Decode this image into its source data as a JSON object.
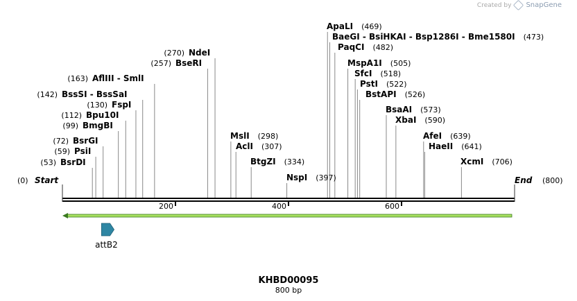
{
  "credit": {
    "prefix": "Created by",
    "brand": "SnapGene",
    "icon": "snapgene-logo-icon"
  },
  "map": {
    "title": "KHBD00095",
    "length_label": "800 bp",
    "length_bp": 800,
    "start_label": "Start",
    "start_pos": "(0)",
    "end_label": "End",
    "end_pos": "(800)"
  },
  "ruler": {
    "ticks": [
      200,
      400,
      600
    ]
  },
  "sites": [
    {
      "label": "BsrDI",
      "pos": 53,
      "pos_label": "(53)",
      "bp": 53
    },
    {
      "label": "PsiI",
      "pos": 59,
      "pos_label": "(59)",
      "bp": 59
    },
    {
      "label": "BsrGI",
      "pos": 72,
      "pos_label": "(72)",
      "bp": 72
    },
    {
      "label": "BmgBI",
      "pos": 99,
      "pos_label": "(99)",
      "bp": 99
    },
    {
      "label": "Bpu10I",
      "pos": 112,
      "pos_label": "(112)",
      "bp": 112
    },
    {
      "label": "FspI",
      "pos": 130,
      "pos_label": "(130)",
      "bp": 130
    },
    {
      "label": "BssSI - BssSaI",
      "pos": 142,
      "pos_label": "(142)",
      "bp": 142
    },
    {
      "label": "AflIII - SmlI",
      "pos": 163,
      "pos_label": "(163)",
      "bp": 163
    },
    {
      "label": "BseRI",
      "pos": 257,
      "pos_label": "(257)",
      "bp": 257
    },
    {
      "label": "NdeI",
      "pos": 270,
      "pos_label": "(270)",
      "bp": 270
    },
    {
      "label": "MslI",
      "pos": 298,
      "pos_label": "(298)",
      "bp": 298
    },
    {
      "label": "AclI",
      "pos": 307,
      "pos_label": "(307)",
      "bp": 307
    },
    {
      "label": "BtgZI",
      "pos": 334,
      "pos_label": "(334)",
      "bp": 334
    },
    {
      "label": "NspI",
      "pos": 397,
      "pos_label": "(397)",
      "bp": 397
    },
    {
      "label": "ApaLI",
      "pos": 469,
      "pos_label": "(469)",
      "bp": 469
    },
    {
      "label": "BaeGI - BsiHKAI - Bsp1286I - Bme1580I",
      "pos": 473,
      "pos_label": "(473)",
      "bp": 473
    },
    {
      "label": "PaqCI",
      "pos": 482,
      "pos_label": "(482)",
      "bp": 482
    },
    {
      "label": "MspA1I",
      "pos": 505,
      "pos_label": "(505)",
      "bp": 505
    },
    {
      "label": "SfcI",
      "pos": 518,
      "pos_label": "(518)",
      "bp": 518
    },
    {
      "label": "PstI",
      "pos": 522,
      "pos_label": "(522)",
      "bp": 522
    },
    {
      "label": "BstAPI",
      "pos": 526,
      "pos_label": "(526)",
      "bp": 526
    },
    {
      "label": "BsaAI",
      "pos": 573,
      "pos_label": "(573)",
      "bp": 573
    },
    {
      "label": "XbaI",
      "pos": 590,
      "pos_label": "(590)",
      "bp": 590
    },
    {
      "label": "AfeI",
      "pos": 639,
      "pos_label": "(639)",
      "bp": 639
    },
    {
      "label": "HaeII",
      "pos": 641,
      "pos_label": "(641)",
      "bp": 641
    },
    {
      "label": "XcmI",
      "pos": 706,
      "pos_label": "(706)",
      "bp": 706
    }
  ],
  "features": [
    {
      "label": "attB2",
      "start_bp": 63,
      "end_bp": 89,
      "direction": "forward",
      "color": "#2e86a3"
    }
  ],
  "orf": {
    "start_bp": 0,
    "end_bp": 800,
    "direction": "reverse",
    "color": "#a8e060",
    "stroke": "#3a7a20"
  },
  "colors": {
    "backbone": "#000000",
    "site_line": "#888888",
    "text": "#000000"
  }
}
